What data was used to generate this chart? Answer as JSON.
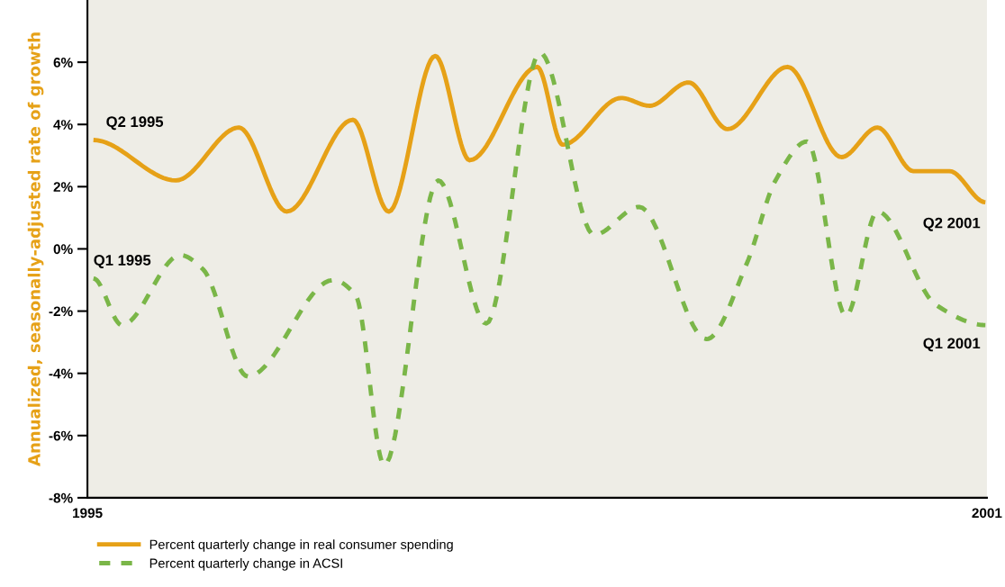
{
  "chart_data": {
    "type": "line",
    "ylabel": "Annualized, seasonally-adjusted rate of growth",
    "xlim": [
      1995,
      2001
    ],
    "xticks": [
      1995,
      2001
    ],
    "ylim": [
      -8,
      8
    ],
    "yticks": [
      {
        "value": -8,
        "label": "-8%"
      },
      {
        "value": -6,
        "label": "-6%"
      },
      {
        "value": -4,
        "label": "-4%"
      },
      {
        "value": -2,
        "label": "-2%"
      },
      {
        "value": 0,
        "label": "0%"
      },
      {
        "value": 2,
        "label": "2%"
      },
      {
        "value": 4,
        "label": "4%"
      },
      {
        "value": 6,
        "label": "6%"
      }
    ],
    "grid": false,
    "legend": "bottom",
    "marker": "none",
    "series": [
      {
        "name": "Percent quarterly change in real consumer spending",
        "color": "#e6a117",
        "line_style": "solid",
        "x": [
          1995.04,
          1995.59,
          1996.01,
          1996.33,
          1996.77,
          1997.01,
          1997.32,
          1997.55,
          1998.0,
          1998.17,
          1998.56,
          1998.75,
          1999.01,
          1999.27,
          1999.67,
          2000.03,
          2000.27,
          2000.51,
          2000.75,
          2000.99
        ],
        "values": [
          3.5,
          2.2,
          3.9,
          1.2,
          4.15,
          1.2,
          6.2,
          2.85,
          5.85,
          3.35,
          4.85,
          4.6,
          5.35,
          3.85,
          5.85,
          2.95,
          3.9,
          2.5,
          2.5,
          1.5
        ]
      },
      {
        "name": "Percent quarterly change in ACSI",
        "color": "#7ab648",
        "line_style": "dashed",
        "x": [
          1995.04,
          1995.23,
          1995.62,
          1995.77,
          1996.07,
          1996.64,
          1996.79,
          1996.98,
          1997.34,
          1997.66,
          1998.02,
          1998.38,
          1998.68,
          1999.13,
          1999.4,
          1999.59,
          1999.8,
          2000.06,
          2000.27,
          2000.66,
          2000.99
        ],
        "values": [
          -0.95,
          -2.45,
          -0.2,
          -0.65,
          -4.1,
          -1.0,
          -1.5,
          -6.95,
          2.2,
          -2.4,
          6.3,
          0.45,
          1.35,
          -2.9,
          -0.45,
          2.2,
          3.45,
          -2.15,
          1.2,
          -1.8,
          -2.45
        ]
      }
    ],
    "annotations": [
      "Q2 1995",
      "Q1 1995",
      "Q2 2001",
      "Q1 2001"
    ]
  }
}
